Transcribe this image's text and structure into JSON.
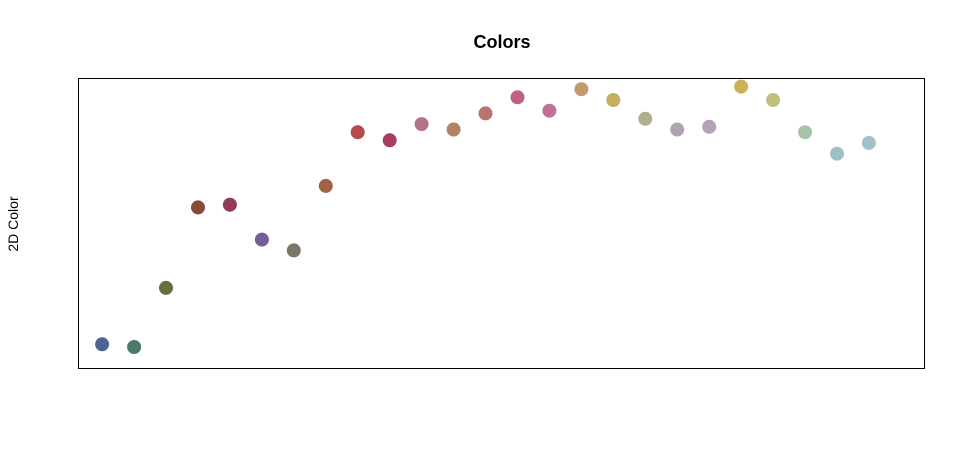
{
  "chart_data": {
    "type": "scatter",
    "title": "Colors",
    "xlabel": "",
    "ylabel": "2D Color",
    "axes_visible": false,
    "grid": false,
    "xlim": [
      0.26,
      26.74
    ],
    "ylim": [
      -0.04,
      1.04
    ],
    "points": [
      {
        "x": 1,
        "y": 0.05,
        "color": "#4a6690"
      },
      {
        "x": 2,
        "y": 0.04,
        "color": "#4a7a68"
      },
      {
        "x": 3,
        "y": 0.26,
        "color": "#6a6c42"
      },
      {
        "x": 4,
        "y": 0.56,
        "color": "#8a4a3a"
      },
      {
        "x": 5,
        "y": 0.57,
        "color": "#903c58"
      },
      {
        "x": 6,
        "y": 0.44,
        "color": "#7a5a98"
      },
      {
        "x": 7,
        "y": 0.4,
        "color": "#7a7668"
      },
      {
        "x": 8,
        "y": 0.64,
        "color": "#a06246"
      },
      {
        "x": 9,
        "y": 0.84,
        "color": "#b64a4e"
      },
      {
        "x": 10,
        "y": 0.81,
        "color": "#a63c62"
      },
      {
        "x": 11,
        "y": 0.87,
        "color": "#b47286"
      },
      {
        "x": 12,
        "y": 0.85,
        "color": "#b28262"
      },
      {
        "x": 13,
        "y": 0.91,
        "color": "#ba7470"
      },
      {
        "x": 14,
        "y": 0.97,
        "color": "#c06084"
      },
      {
        "x": 15,
        "y": 0.92,
        "color": "#c0709c"
      },
      {
        "x": 16,
        "y": 1.0,
        "color": "#c49a6a"
      },
      {
        "x": 17,
        "y": 0.96,
        "color": "#c4ae62"
      },
      {
        "x": 18,
        "y": 0.89,
        "color": "#b0b090"
      },
      {
        "x": 19,
        "y": 0.85,
        "color": "#b0a4b2"
      },
      {
        "x": 20,
        "y": 0.86,
        "color": "#b8a0bc"
      },
      {
        "x": 21,
        "y": 1.01,
        "color": "#cab25a"
      },
      {
        "x": 22,
        "y": 0.96,
        "color": "#c0c07a"
      },
      {
        "x": 23,
        "y": 0.84,
        "color": "#a8c4a6"
      },
      {
        "x": 24,
        "y": 0.76,
        "color": "#a0c0c8"
      },
      {
        "x": 25,
        "y": 0.8,
        "color": "#a4c0cc"
      }
    ]
  }
}
